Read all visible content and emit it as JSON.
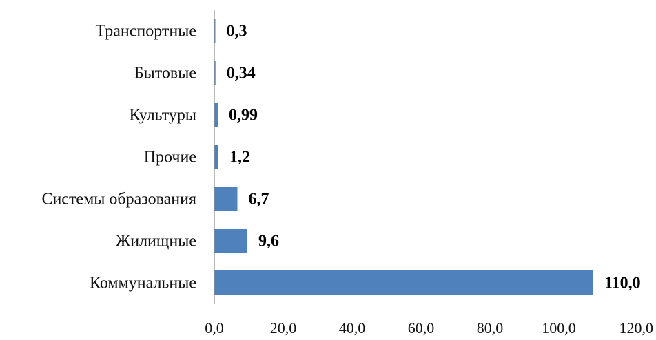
{
  "chart_data": {
    "type": "bar",
    "orientation": "horizontal",
    "categories": [
      "Транспортные",
      "Бытовые",
      "Культуры",
      "Прочие",
      "Системы образования",
      "Жилищные",
      "Коммунальные"
    ],
    "values": [
      0.3,
      0.34,
      0.99,
      1.2,
      6.7,
      9.6,
      110.0
    ],
    "data_labels": [
      "0,3",
      "0,34",
      "0,99",
      "1,2",
      "6,7",
      "9,6",
      "110,0"
    ],
    "x_ticks": [
      "0,0",
      "20,0",
      "40,0",
      "60,0",
      "80,0",
      "100,0",
      "120,0"
    ],
    "xlim": [
      0,
      120
    ],
    "title": "",
    "xlabel": "",
    "ylabel": "",
    "grid": false,
    "legend": "none",
    "bar_color": "#4f81bd"
  }
}
